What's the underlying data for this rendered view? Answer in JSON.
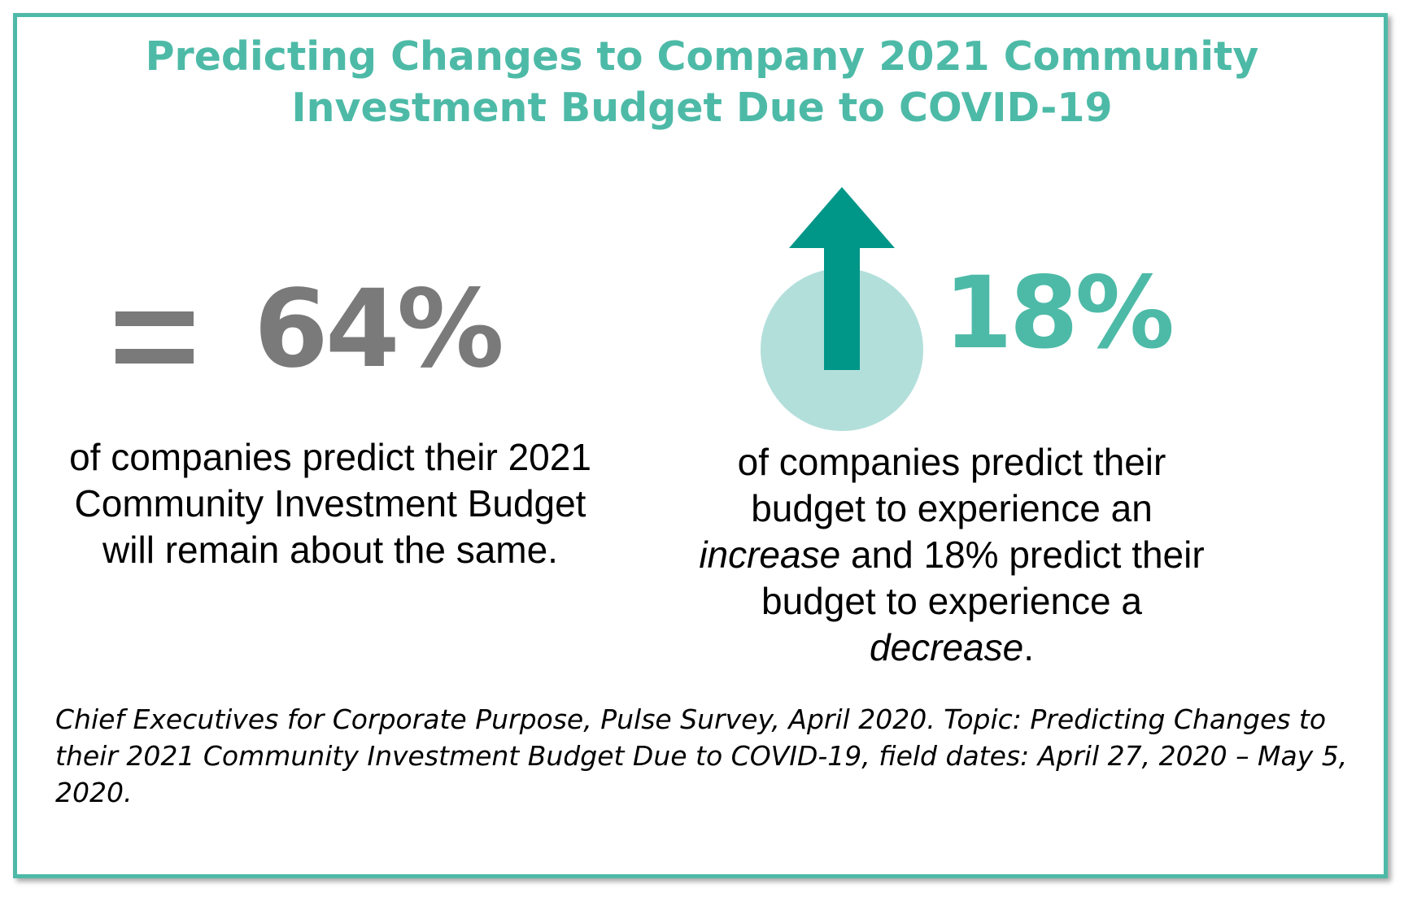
{
  "title": {
    "line1": "Predicting Changes to Company 2021 Community",
    "line2": "Investment Budget Due to COVID-19"
  },
  "left_stat": {
    "icon": "equals-icon",
    "value": "64%",
    "desc_line1": "of companies predict their 2021",
    "desc_line2": "Community Investment Budget",
    "desc_line3": "will remain about the same."
  },
  "right_stat": {
    "icon": "arrow-up-icon",
    "value": "18%",
    "desc_line1": "of companies predict their",
    "desc_line2": "budget to experience an",
    "desc_line3_em": "increase",
    "desc_line3_rest": " and 18% predict their",
    "desc_line4": "budget to experience a",
    "desc_line5_em": "decrease",
    "desc_line5_rest": "."
  },
  "source": {
    "line1": "Chief Executives for Corporate Purpose, Pulse Survey, April 2020. Topic: Predicting Changes to",
    "line2": "their 2021 Community Investment Budget Due to COVID-19, field dates: April 27, 2020 – May 5,",
    "line3": "2020."
  },
  "colors": {
    "teal": "#4dbaa7",
    "dark_teal": "#009688",
    "light_teal": "#b3dfdb",
    "gray": "#7a7a7a"
  }
}
